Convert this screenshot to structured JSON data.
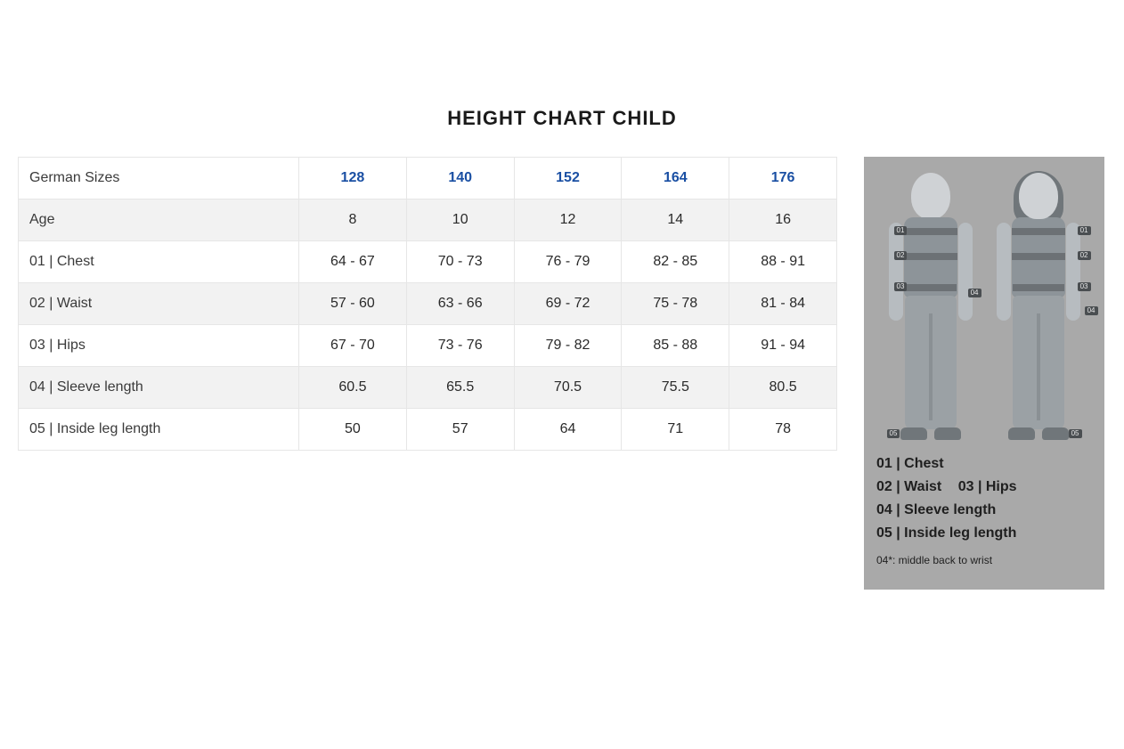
{
  "title": "HEIGHT CHART CHILD",
  "table": {
    "header_label": "German Sizes",
    "sizes": [
      "128",
      "140",
      "152",
      "164",
      "176"
    ],
    "rows": [
      {
        "label": "Age",
        "values": [
          "8",
          "10",
          "12",
          "14",
          "16"
        ]
      },
      {
        "label": "01 | Chest",
        "values": [
          "64 - 67",
          "70 - 73",
          "76 - 79",
          "82 - 85",
          "88 - 91"
        ]
      },
      {
        "label": "02 | Waist",
        "values": [
          "57 - 60",
          "63 - 66",
          "69 - 72",
          "75 - 78",
          "81 - 84"
        ]
      },
      {
        "label": "03 | Hips",
        "values": [
          "67 - 70",
          "73 - 76",
          "79 - 82",
          "85 - 88",
          "91 - 94"
        ]
      },
      {
        "label": "04 | Sleeve length",
        "values": [
          "60.5",
          "65.5",
          "70.5",
          "75.5",
          "80.5"
        ]
      },
      {
        "label": "05 | Inside leg length",
        "values": [
          "50",
          "57",
          "64",
          "71",
          "78"
        ]
      }
    ],
    "header_color": "#1a4fa3",
    "border_color": "#e6e6e6",
    "row_alt_bg": "#f2f2f2",
    "row_bg": "#ffffff"
  },
  "legend": {
    "panel_bg": "#a9a9a9",
    "lines": [
      "01 | Chest",
      "02 | Waist   03 | Hips",
      "04 | Sleeve length",
      "05 | Inside leg length"
    ],
    "footnote": "04*: middle back to wrist",
    "figure_tags": [
      "01",
      "02",
      "03",
      "04",
      "05"
    ]
  },
  "colors": {
    "background": "#ffffff",
    "text": "#2a2a2a",
    "mannequin_light": "#cfd2d5",
    "mannequin_mid": "#9ba1a5",
    "mannequin_dark": "#70767a"
  }
}
